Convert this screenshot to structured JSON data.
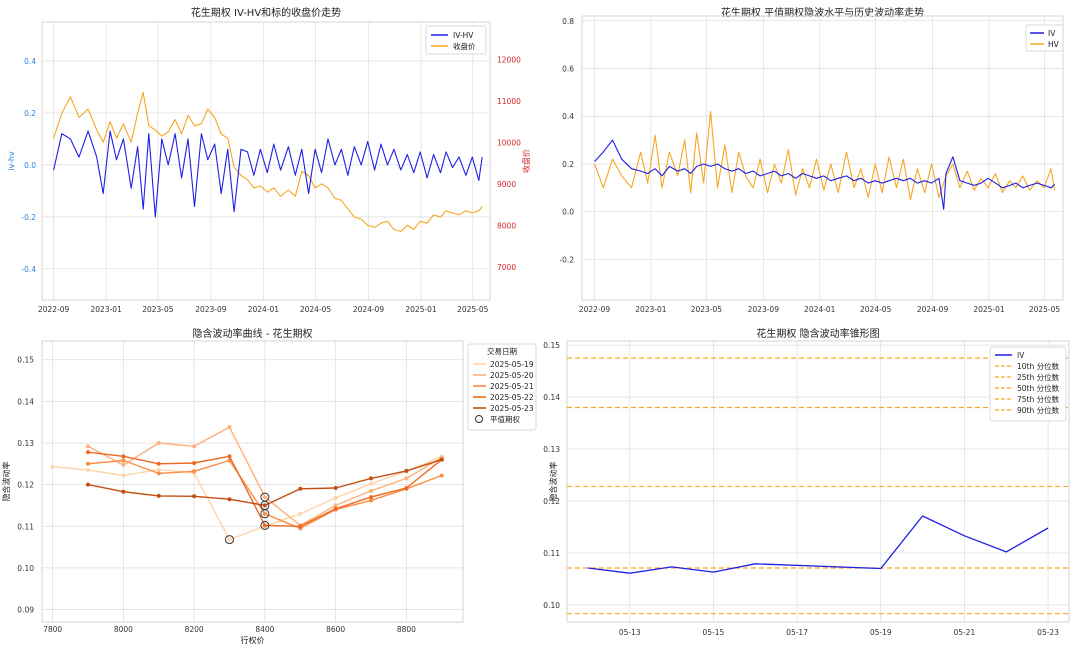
{
  "chart_data": [
    {
      "id": "p1",
      "type": "line",
      "title": "花生期权 IV-HV和标的收盘价走势",
      "xlabel": "",
      "ylabel": "iv-hv",
      "ylabel_right": "收盘价",
      "xlim": [
        "2022-08-05",
        "2025-06-10"
      ],
      "ylim": [
        -0.52,
        0.55
      ],
      "ylim_right": [
        6200,
        12900
      ],
      "xticks": [
        "2022-09",
        "2023-01",
        "2023-05",
        "2023-09",
        "2024-01",
        "2024-05",
        "2024-09",
        "2025-01",
        "2025-05"
      ],
      "yticks": [
        -0.4,
        -0.2,
        0.0,
        0.2,
        0.4
      ],
      "yticks_right": [
        7000,
        8000,
        9000,
        10000,
        11000,
        12000
      ],
      "legend": [
        "IV-HV",
        "收盘价"
      ],
      "legend_position": "top-right",
      "series": [
        {
          "name": "IV-HV",
          "axis": "left",
          "color": "#1f1fe6",
          "x": [
            "2022-09-01",
            "2022-09-20",
            "2022-10-10",
            "2022-10-30",
            "2022-11-20",
            "2022-12-10",
            "2022-12-25",
            "2023-01-10",
            "2023-01-25",
            "2023-02-10",
            "2023-02-28",
            "2023-03-15",
            "2023-03-28",
            "2023-04-10",
            "2023-04-25",
            "2023-05-10",
            "2023-05-25",
            "2023-06-10",
            "2023-06-25",
            "2023-07-10",
            "2023-07-25",
            "2023-08-10",
            "2023-08-25",
            "2023-09-10",
            "2023-09-25",
            "2023-10-10",
            "2023-10-25",
            "2023-11-10",
            "2023-11-25",
            "2023-12-10",
            "2023-12-25",
            "2024-01-10",
            "2024-01-25",
            "2024-02-10",
            "2024-02-28",
            "2024-03-15",
            "2024-03-30",
            "2024-04-15",
            "2024-04-30",
            "2024-05-15",
            "2024-05-30",
            "2024-06-15",
            "2024-06-30",
            "2024-07-15",
            "2024-07-30",
            "2024-08-15",
            "2024-08-30",
            "2024-09-15",
            "2024-09-30",
            "2024-10-15",
            "2024-10-30",
            "2024-11-15",
            "2024-11-30",
            "2024-12-15",
            "2024-12-30",
            "2025-01-15",
            "2025-01-30",
            "2025-02-15",
            "2025-02-28",
            "2025-03-15",
            "2025-03-30",
            "2025-04-15",
            "2025-04-30",
            "2025-05-15",
            "2025-05-23"
          ],
          "values": [
            -0.02,
            0.12,
            0.1,
            0.03,
            0.13,
            0.03,
            -0.11,
            0.13,
            0.02,
            0.1,
            -0.09,
            0.07,
            -0.17,
            0.12,
            -0.2,
            0.1,
            0.0,
            0.12,
            -0.05,
            0.1,
            -0.16,
            0.12,
            0.02,
            0.08,
            -0.11,
            0.06,
            -0.18,
            0.06,
            0.05,
            -0.04,
            0.06,
            -0.03,
            0.08,
            -0.02,
            0.07,
            -0.04,
            0.06,
            -0.11,
            0.06,
            -0.03,
            0.1,
            0.0,
            0.06,
            -0.04,
            0.07,
            0.0,
            0.09,
            -0.02,
            0.08,
            0.0,
            0.06,
            -0.02,
            0.04,
            -0.03,
            0.05,
            -0.05,
            0.04,
            -0.03,
            0.05,
            -0.01,
            0.03,
            -0.04,
            0.03,
            -0.06,
            0.03
          ]
        },
        {
          "name": "收盘价",
          "axis": "right",
          "color": "#f5a623",
          "x": [
            "2022-09-01",
            "2022-09-20",
            "2022-10-10",
            "2022-10-30",
            "2022-11-20",
            "2022-12-10",
            "2022-12-25",
            "2023-01-10",
            "2023-01-25",
            "2023-02-10",
            "2023-02-28",
            "2023-03-15",
            "2023-03-28",
            "2023-04-10",
            "2023-04-25",
            "2023-05-10",
            "2023-05-25",
            "2023-06-10",
            "2023-06-25",
            "2023-07-10",
            "2023-07-25",
            "2023-08-10",
            "2023-08-25",
            "2023-09-10",
            "2023-09-25",
            "2023-10-10",
            "2023-10-25",
            "2023-11-10",
            "2023-11-25",
            "2023-12-10",
            "2023-12-25",
            "2024-01-10",
            "2024-01-25",
            "2024-02-10",
            "2024-02-28",
            "2024-03-15",
            "2024-03-30",
            "2024-04-15",
            "2024-04-30",
            "2024-05-15",
            "2024-05-30",
            "2024-06-15",
            "2024-06-30",
            "2024-07-15",
            "2024-07-30",
            "2024-08-15",
            "2024-08-30",
            "2024-09-15",
            "2024-09-30",
            "2024-10-15",
            "2024-10-30",
            "2024-11-15",
            "2024-11-30",
            "2024-12-15",
            "2024-12-30",
            "2025-01-15",
            "2025-01-30",
            "2025-02-15",
            "2025-02-28",
            "2025-03-15",
            "2025-03-30",
            "2025-04-15",
            "2025-04-30",
            "2025-05-15",
            "2025-05-23"
          ],
          "values": [
            10100,
            10700,
            11100,
            10600,
            10800,
            10300,
            10000,
            10500,
            10100,
            10450,
            10000,
            10700,
            11200,
            10400,
            10300,
            10150,
            10250,
            10550,
            10200,
            10650,
            10400,
            10450,
            10800,
            10600,
            10200,
            10100,
            9400,
            9200,
            9100,
            8900,
            8950,
            8800,
            8900,
            8700,
            8850,
            8700,
            9300,
            9200,
            8900,
            9000,
            8900,
            8650,
            8600,
            8400,
            8200,
            8150,
            8000,
            7950,
            8050,
            8100,
            7900,
            7850,
            8000,
            7900,
            8100,
            8050,
            8250,
            8200,
            8350,
            8300,
            8250,
            8350,
            8300,
            8350,
            8450
          ]
        }
      ]
    },
    {
      "id": "p2",
      "type": "line",
      "title": "花生期权 平值期权隐波水平与历史波动率走势",
      "xlabel": "",
      "ylabel": "",
      "xlim": [
        "2022-08-05",
        "2025-06-10"
      ],
      "ylim": [
        -0.37,
        0.82
      ],
      "xticks": [
        "2022-09",
        "2023-01",
        "2023-05",
        "2023-09",
        "2024-01",
        "2024-05",
        "2024-09",
        "2025-01",
        "2025-05"
      ],
      "yticks": [
        -0.2,
        0.0,
        0.2,
        0.4,
        0.6,
        0.8
      ],
      "legend": [
        "IV",
        "HV"
      ],
      "legend_position": "top-right",
      "series": [
        {
          "name": "IV",
          "color": "#1f1fe6",
          "x": [
            "2022-09-01",
            "2022-09-20",
            "2022-10-10",
            "2022-10-30",
            "2022-11-20",
            "2022-12-10",
            "2022-12-25",
            "2023-01-10",
            "2023-01-25",
            "2023-02-10",
            "2023-02-28",
            "2023-03-15",
            "2023-03-28",
            "2023-04-10",
            "2023-04-25",
            "2023-05-10",
            "2023-05-25",
            "2023-06-10",
            "2023-06-25",
            "2023-07-10",
            "2023-07-25",
            "2023-08-10",
            "2023-08-25",
            "2023-09-10",
            "2023-09-25",
            "2023-10-10",
            "2023-10-25",
            "2023-11-10",
            "2023-11-25",
            "2023-12-10",
            "2023-12-25",
            "2024-01-10",
            "2024-01-25",
            "2024-02-10",
            "2024-02-28",
            "2024-03-15",
            "2024-03-30",
            "2024-04-15",
            "2024-04-30",
            "2024-05-15",
            "2024-05-30",
            "2024-06-15",
            "2024-06-30",
            "2024-07-15",
            "2024-07-30",
            "2024-08-15",
            "2024-08-30",
            "2024-09-15",
            "2024-09-25",
            "2024-09-30",
            "2024-10-15",
            "2024-10-30",
            "2024-11-15",
            "2024-11-30",
            "2024-12-15",
            "2024-12-30",
            "2025-01-15",
            "2025-01-30",
            "2025-02-15",
            "2025-02-28",
            "2025-03-15",
            "2025-03-30",
            "2025-04-15",
            "2025-04-30",
            "2025-05-15",
            "2025-05-23"
          ],
          "values": [
            0.21,
            0.25,
            0.3,
            0.22,
            0.18,
            0.17,
            0.16,
            0.18,
            0.15,
            0.19,
            0.17,
            0.18,
            0.16,
            0.19,
            0.2,
            0.19,
            0.2,
            0.18,
            0.17,
            0.18,
            0.16,
            0.17,
            0.15,
            0.16,
            0.17,
            0.15,
            0.16,
            0.14,
            0.16,
            0.15,
            0.14,
            0.15,
            0.13,
            0.14,
            0.15,
            0.13,
            0.14,
            0.12,
            0.13,
            0.12,
            0.13,
            0.14,
            0.13,
            0.14,
            0.12,
            0.13,
            0.12,
            0.14,
            0.01,
            0.16,
            0.23,
            0.13,
            0.12,
            0.11,
            0.12,
            0.14,
            0.12,
            0.1,
            0.11,
            0.12,
            0.1,
            0.11,
            0.12,
            0.11,
            0.1,
            0.115
          ]
        },
        {
          "name": "HV",
          "color": "#f5a623",
          "x": [
            "2022-09-01",
            "2022-09-20",
            "2022-10-10",
            "2022-10-30",
            "2022-11-20",
            "2022-12-10",
            "2022-12-25",
            "2023-01-10",
            "2023-01-25",
            "2023-02-10",
            "2023-02-28",
            "2023-03-15",
            "2023-03-28",
            "2023-04-10",
            "2023-04-25",
            "2023-05-10",
            "2023-05-25",
            "2023-06-10",
            "2023-06-25",
            "2023-07-10",
            "2023-07-25",
            "2023-08-10",
            "2023-08-25",
            "2023-09-10",
            "2023-09-25",
            "2023-10-10",
            "2023-10-25",
            "2023-11-10",
            "2023-11-25",
            "2023-12-10",
            "2023-12-25",
            "2024-01-10",
            "2024-01-25",
            "2024-02-10",
            "2024-02-28",
            "2024-03-15",
            "2024-03-30",
            "2024-04-15",
            "2024-04-30",
            "2024-05-15",
            "2024-05-30",
            "2024-06-15",
            "2024-06-30",
            "2024-07-15",
            "2024-07-30",
            "2024-08-15",
            "2024-08-30",
            "2024-09-15",
            "2024-09-30",
            "2024-10-15",
            "2024-10-30",
            "2024-11-15",
            "2024-11-30",
            "2024-12-15",
            "2024-12-30",
            "2025-01-15",
            "2025-01-30",
            "2025-02-15",
            "2025-02-28",
            "2025-03-15",
            "2025-03-30",
            "2025-04-15",
            "2025-04-30",
            "2025-05-15",
            "2025-05-23"
          ],
          "values": [
            0.2,
            0.1,
            0.22,
            0.15,
            0.1,
            0.25,
            0.12,
            0.32,
            0.1,
            0.25,
            0.15,
            0.3,
            0.08,
            0.33,
            0.12,
            0.42,
            0.1,
            0.28,
            0.08,
            0.25,
            0.15,
            0.1,
            0.22,
            0.08,
            0.2,
            0.12,
            0.26,
            0.07,
            0.18,
            0.1,
            0.22,
            0.09,
            0.2,
            0.08,
            0.25,
            0.1,
            0.18,
            0.06,
            0.2,
            0.08,
            0.23,
            0.1,
            0.22,
            0.05,
            0.18,
            0.08,
            0.2,
            0.06,
            0.15,
            0.2,
            0.1,
            0.17,
            0.09,
            0.14,
            0.1,
            0.16,
            0.08,
            0.13,
            0.1,
            0.15,
            0.09,
            0.13,
            0.1,
            0.18,
            0.09
          ]
        }
      ]
    },
    {
      "id": "p3",
      "type": "line",
      "title": "隐含波动率曲线 - 花生期权",
      "xlabel": "行权价",
      "ylabel": "隐含波动率",
      "xlim": [
        7770,
        8960
      ],
      "ylim": [
        0.087,
        0.1545
      ],
      "xticks": [
        7800,
        8000,
        8200,
        8400,
        8600,
        8800
      ],
      "yticks": [
        0.09,
        0.1,
        0.11,
        0.12,
        0.13,
        0.14,
        0.15
      ],
      "legend_title": "交易日期",
      "legend_position": "outside-top-right",
      "atm_label": "平值期权",
      "series": [
        {
          "name": "2025-05-19",
          "color": "#fdd5ab",
          "x": [
            7800,
            7900,
            8000,
            8100,
            8200,
            8300,
            8400,
            8500,
            8600,
            8700,
            8800,
            8900
          ],
          "values": [
            0.1243,
            0.1235,
            0.1222,
            0.1236,
            0.1228,
            0.1068,
            0.11,
            0.113,
            0.1168,
            0.1202,
            0.1232,
            0.1268
          ]
        },
        {
          "name": "2025-05-20",
          "color": "#fdb07a",
          "x": [
            7900,
            8000,
            8100,
            8200,
            8300,
            8400,
            8500,
            8600,
            8700,
            8800,
            8900
          ],
          "values": [
            0.1292,
            0.1247,
            0.13,
            0.1292,
            0.1338,
            0.117,
            0.1102,
            0.115,
            0.1185,
            0.1215,
            0.1265
          ]
        },
        {
          "name": "2025-05-21",
          "color": "#fb8c45",
          "x": [
            7900,
            8000,
            8100,
            8200,
            8300,
            8400,
            8500,
            8600,
            8700,
            8800,
            8900
          ],
          "values": [
            0.125,
            0.1258,
            0.1227,
            0.1232,
            0.1258,
            0.113,
            0.1095,
            0.114,
            0.1162,
            0.119,
            0.1222
          ]
        },
        {
          "name": "2025-05-22",
          "color": "#ec6a22",
          "x": [
            7900,
            8000,
            8100,
            8200,
            8300,
            8400,
            8500,
            8600,
            8700,
            8800,
            8900
          ],
          "values": [
            0.1278,
            0.1268,
            0.125,
            0.1252,
            0.1268,
            0.1102,
            0.11,
            0.1142,
            0.117,
            0.1192,
            0.126
          ]
        },
        {
          "name": "2025-05-23",
          "color": "#c44e12",
          "x": [
            7900,
            8000,
            8100,
            8200,
            8300,
            8400,
            8500,
            8600,
            8700,
            8800,
            8900
          ],
          "values": [
            0.12,
            0.1183,
            0.1173,
            0.1172,
            0.1165,
            0.115,
            0.119,
            0.1192,
            0.1215,
            0.1233,
            0.126
          ]
        }
      ],
      "atm_points": [
        {
          "x": 8300,
          "y": 0.1068
        },
        {
          "x": 8400,
          "y": 0.117
        },
        {
          "x": 8400,
          "y": 0.115
        },
        {
          "x": 8400,
          "y": 0.113
        },
        {
          "x": 8400,
          "y": 0.1102
        }
      ]
    },
    {
      "id": "p4",
      "type": "line",
      "title": "花生期权 隐含波动率锥形图",
      "xlabel": "",
      "ylabel": "隐含波动率",
      "xlim": [
        "2025-05-11 12:00",
        "2025-05-23 12:00"
      ],
      "ylim": [
        0.0967,
        0.1508
      ],
      "xticks": [
        "05-13",
        "05-15",
        "05-17",
        "05-19",
        "05-21",
        "05-23"
      ],
      "yticks": [
        0.1,
        0.11,
        0.12,
        0.13,
        0.14,
        0.15
      ],
      "legend_position": "top-right",
      "series": [
        {
          "name": "IV",
          "color": "#1f1fe6",
          "x": [
            "2025-05-12",
            "2025-05-13",
            "2025-05-14",
            "2025-05-15",
            "2025-05-16",
            "2025-05-19",
            "2025-05-20",
            "2025-05-21",
            "2025-05-22",
            "2025-05-23"
          ],
          "values": [
            0.1071,
            0.1061,
            0.1073,
            0.1063,
            0.1079,
            0.107,
            0.1171,
            0.1133,
            0.1102,
            0.1148
          ]
        }
      ],
      "percentile_lines": [
        {
          "name": "10th 分位数",
          "value": 0.0983,
          "color": "#f5a623"
        },
        {
          "name": "25th 分位数",
          "value": 0.1071,
          "color": "#f5a623"
        },
        {
          "name": "50th 分位数",
          "value": 0.1228,
          "color": "#f5a623"
        },
        {
          "name": "75th 分位数",
          "value": 0.138,
          "color": "#f5a623"
        },
        {
          "name": "90th 分位数",
          "value": 0.1475,
          "color": "#f5a623"
        }
      ]
    }
  ]
}
